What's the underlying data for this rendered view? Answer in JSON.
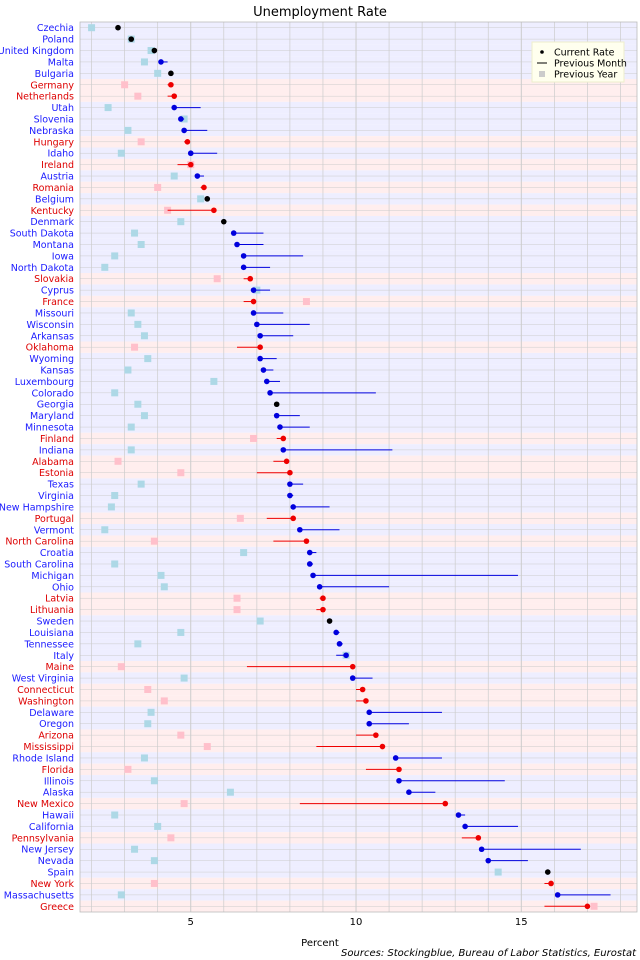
{
  "chart_data": {
    "type": "scatter",
    "title": "Unemployment Rate",
    "xlabel": "Percent",
    "ylabel": "",
    "xlim": [
      1.65,
      18.5
    ],
    "xticks": [
      5,
      10,
      15
    ],
    "grid": true,
    "legend": {
      "placement": "top-right",
      "items": [
        {
          "label": "Current Rate",
          "marker": "dot"
        },
        {
          "label": "Previous Month",
          "marker": "line"
        },
        {
          "label": "Previous Year",
          "marker": "square"
        }
      ]
    },
    "source": "Sources: Stockingblue, Bureau of Labor Statistics, Eurostat",
    "colors": {
      "country_label": "#1a1aff",
      "state_label": "#dd0000",
      "country_row_bg": "#eeeeff",
      "state_row_bg": "#ffeeee",
      "gridline": "#cccccc",
      "current_increase": "#000000",
      "current_decrease_country": "#0000dd",
      "current_decrease_state": "#ee0000",
      "prev_year_country": "#add8e6",
      "prev_year_state": "#ffc0cb"
    },
    "rows": [
      {
        "name": "Czechia",
        "kind": "country",
        "current": 2.8,
        "prev_month": 2.8,
        "prev_year": 2.0
      },
      {
        "name": "Poland",
        "kind": "country",
        "current": 3.2,
        "prev_month": 3.2,
        "prev_year": 3.2
      },
      {
        "name": "United Kingdom",
        "kind": "country",
        "current": 3.9,
        "prev_month": 3.9,
        "prev_year": 3.8
      },
      {
        "name": "Malta",
        "kind": "country",
        "current": 4.1,
        "prev_month": 4.3,
        "prev_year": 3.6
      },
      {
        "name": "Bulgaria",
        "kind": "country",
        "current": 4.4,
        "prev_month": 4.4,
        "prev_year": 4.0
      },
      {
        "name": "Germany",
        "kind": "state",
        "current": 4.4,
        "prev_month": 4.3,
        "prev_year": 3.0
      },
      {
        "name": "Netherlands",
        "kind": "state",
        "current": 4.5,
        "prev_month": 4.3,
        "prev_year": 3.4
      },
      {
        "name": "Utah",
        "kind": "country",
        "current": 4.5,
        "prev_month": 5.3,
        "prev_year": 2.5
      },
      {
        "name": "Slovenia",
        "kind": "country",
        "current": 4.7,
        "prev_month": 4.8,
        "prev_year": 4.8
      },
      {
        "name": "Nebraska",
        "kind": "country",
        "current": 4.8,
        "prev_month": 5.5,
        "prev_year": 3.1
      },
      {
        "name": "Hungary",
        "kind": "state",
        "current": 4.9,
        "prev_month": 4.8,
        "prev_year": 3.5
      },
      {
        "name": "Idaho",
        "kind": "country",
        "current": 5.0,
        "prev_month": 5.8,
        "prev_year": 2.9
      },
      {
        "name": "Ireland",
        "kind": "state",
        "current": 5.0,
        "prev_month": 4.6,
        "prev_year": 5.0
      },
      {
        "name": "Austria",
        "kind": "country",
        "current": 5.2,
        "prev_month": 5.4,
        "prev_year": 4.5
      },
      {
        "name": "Romania",
        "kind": "state",
        "current": 5.4,
        "prev_month": 5.3,
        "prev_year": 4.0
      },
      {
        "name": "Belgium",
        "kind": "country",
        "current": 5.5,
        "prev_month": 5.5,
        "prev_year": 5.3
      },
      {
        "name": "Kentucky",
        "kind": "state",
        "current": 5.7,
        "prev_month": 4.3,
        "prev_year": 4.3
      },
      {
        "name": "Denmark",
        "kind": "country",
        "current": 6.0,
        "prev_month": 6.0,
        "prev_year": 4.7
      },
      {
        "name": "South Dakota",
        "kind": "country",
        "current": 6.3,
        "prev_month": 7.2,
        "prev_year": 3.3
      },
      {
        "name": "Montana",
        "kind": "country",
        "current": 6.4,
        "prev_month": 7.2,
        "prev_year": 3.5
      },
      {
        "name": "Iowa",
        "kind": "country",
        "current": 6.6,
        "prev_month": 8.4,
        "prev_year": 2.7
      },
      {
        "name": "North Dakota",
        "kind": "country",
        "current": 6.6,
        "prev_month": 7.4,
        "prev_year": 2.4
      },
      {
        "name": "Slovakia",
        "kind": "state",
        "current": 6.8,
        "prev_month": 6.6,
        "prev_year": 5.8
      },
      {
        "name": "Cyprus",
        "kind": "country",
        "current": 6.9,
        "prev_month": 7.4,
        "prev_year": 7.0
      },
      {
        "name": "France",
        "kind": "state",
        "current": 6.9,
        "prev_month": 6.6,
        "prev_year": 8.5
      },
      {
        "name": "Missouri",
        "kind": "country",
        "current": 6.9,
        "prev_month": 7.8,
        "prev_year": 3.2
      },
      {
        "name": "Wisconsin",
        "kind": "country",
        "current": 7.0,
        "prev_month": 8.6,
        "prev_year": 3.4
      },
      {
        "name": "Arkansas",
        "kind": "country",
        "current": 7.1,
        "prev_month": 8.1,
        "prev_year": 3.6
      },
      {
        "name": "Oklahoma",
        "kind": "state",
        "current": 7.1,
        "prev_month": 6.4,
        "prev_year": 3.3
      },
      {
        "name": "Wyoming",
        "kind": "country",
        "current": 7.1,
        "prev_month": 7.6,
        "prev_year": 3.7
      },
      {
        "name": "Kansas",
        "kind": "country",
        "current": 7.2,
        "prev_month": 7.5,
        "prev_year": 3.1
      },
      {
        "name": "Luxembourg",
        "kind": "country",
        "current": 7.3,
        "prev_month": 7.7,
        "prev_year": 5.7
      },
      {
        "name": "Colorado",
        "kind": "country",
        "current": 7.4,
        "prev_month": 10.6,
        "prev_year": 2.7
      },
      {
        "name": "Georgia",
        "kind": "country",
        "current": 7.6,
        "prev_month": 7.6,
        "prev_year": 3.4
      },
      {
        "name": "Maryland",
        "kind": "country",
        "current": 7.6,
        "prev_month": 8.3,
        "prev_year": 3.6
      },
      {
        "name": "Minnesota",
        "kind": "country",
        "current": 7.7,
        "prev_month": 8.6,
        "prev_year": 3.2
      },
      {
        "name": "Finland",
        "kind": "state",
        "current": 7.8,
        "prev_month": 7.6,
        "prev_year": 6.9
      },
      {
        "name": "Indiana",
        "kind": "country",
        "current": 7.8,
        "prev_month": 11.1,
        "prev_year": 3.2
      },
      {
        "name": "Alabama",
        "kind": "state",
        "current": 7.9,
        "prev_month": 7.5,
        "prev_year": 2.8
      },
      {
        "name": "Estonia",
        "kind": "state",
        "current": 8.0,
        "prev_month": 7.0,
        "prev_year": 4.7
      },
      {
        "name": "Texas",
        "kind": "country",
        "current": 8.0,
        "prev_month": 8.4,
        "prev_year": 3.5
      },
      {
        "name": "Virginia",
        "kind": "country",
        "current": 8.0,
        "prev_month": 8.1,
        "prev_year": 2.7
      },
      {
        "name": "New Hampshire",
        "kind": "country",
        "current": 8.1,
        "prev_month": 9.2,
        "prev_year": 2.6
      },
      {
        "name": "Portugal",
        "kind": "state",
        "current": 8.1,
        "prev_month": 7.3,
        "prev_year": 6.5
      },
      {
        "name": "Vermont",
        "kind": "country",
        "current": 8.3,
        "prev_month": 9.5,
        "prev_year": 2.4
      },
      {
        "name": "North Carolina",
        "kind": "state",
        "current": 8.5,
        "prev_month": 7.5,
        "prev_year": 3.9
      },
      {
        "name": "Croatia",
        "kind": "country",
        "current": 8.6,
        "prev_month": 8.8,
        "prev_year": 6.6
      },
      {
        "name": "South Carolina",
        "kind": "country",
        "current": 8.6,
        "prev_month": 8.7,
        "prev_year": 2.7
      },
      {
        "name": "Michigan",
        "kind": "country",
        "current": 8.7,
        "prev_month": 14.9,
        "prev_year": 4.1
      },
      {
        "name": "Ohio",
        "kind": "country",
        "current": 8.9,
        "prev_month": 11.0,
        "prev_year": 4.2
      },
      {
        "name": "Latvia",
        "kind": "state",
        "current": 9.0,
        "prev_month": 8.9,
        "prev_year": 6.4
      },
      {
        "name": "Lithuania",
        "kind": "state",
        "current": 9.0,
        "prev_month": 8.8,
        "prev_year": 6.4
      },
      {
        "name": "Sweden",
        "kind": "country",
        "current": 9.2,
        "prev_month": 9.2,
        "prev_year": 7.1
      },
      {
        "name": "Louisiana",
        "kind": "country",
        "current": 9.4,
        "prev_month": 9.5,
        "prev_year": 4.7
      },
      {
        "name": "Tennessee",
        "kind": "country",
        "current": 9.5,
        "prev_month": 9.6,
        "prev_year": 3.4
      },
      {
        "name": "Italy",
        "kind": "country",
        "current": 9.7,
        "prev_month": 9.4,
        "prev_year": 9.7
      },
      {
        "name": "Maine",
        "kind": "state",
        "current": 9.9,
        "prev_month": 6.7,
        "prev_year": 2.9
      },
      {
        "name": "West Virginia",
        "kind": "country",
        "current": 9.9,
        "prev_month": 10.5,
        "prev_year": 4.8
      },
      {
        "name": "Connecticut",
        "kind": "state",
        "current": 10.2,
        "prev_month": 10.0,
        "prev_year": 3.7
      },
      {
        "name": "Washington",
        "kind": "state",
        "current": 10.3,
        "prev_month": 10.0,
        "prev_year": 4.2
      },
      {
        "name": "Delaware",
        "kind": "country",
        "current": 10.4,
        "prev_month": 12.6,
        "prev_year": 3.8
      },
      {
        "name": "Oregon",
        "kind": "country",
        "current": 10.4,
        "prev_month": 11.6,
        "prev_year": 3.7
      },
      {
        "name": "Arizona",
        "kind": "state",
        "current": 10.6,
        "prev_month": 10.0,
        "prev_year": 4.7
      },
      {
        "name": "Mississippi",
        "kind": "state",
        "current": 10.8,
        "prev_month": 8.8,
        "prev_year": 5.5
      },
      {
        "name": "Rhode Island",
        "kind": "country",
        "current": 11.2,
        "prev_month": 12.6,
        "prev_year": 3.6
      },
      {
        "name": "Florida",
        "kind": "state",
        "current": 11.3,
        "prev_month": 10.3,
        "prev_year": 3.1
      },
      {
        "name": "Illinois",
        "kind": "country",
        "current": 11.3,
        "prev_month": 14.5,
        "prev_year": 3.9
      },
      {
        "name": "Alaska",
        "kind": "country",
        "current": 11.6,
        "prev_month": 12.4,
        "prev_year": 6.2
      },
      {
        "name": "New Mexico",
        "kind": "state",
        "current": 12.7,
        "prev_month": 8.3,
        "prev_year": 4.8
      },
      {
        "name": "Hawaii",
        "kind": "country",
        "current": 13.1,
        "prev_month": 13.3,
        "prev_year": 2.7
      },
      {
        "name": "California",
        "kind": "country",
        "current": 13.3,
        "prev_month": 14.9,
        "prev_year": 4.0
      },
      {
        "name": "Pennsylvania",
        "kind": "state",
        "current": 13.7,
        "prev_month": 13.2,
        "prev_year": 4.4
      },
      {
        "name": "New Jersey",
        "kind": "country",
        "current": 13.8,
        "prev_month": 16.8,
        "prev_year": 3.3
      },
      {
        "name": "Nevada",
        "kind": "country",
        "current": 14.0,
        "prev_month": 15.2,
        "prev_year": 3.9
      },
      {
        "name": "Spain",
        "kind": "country",
        "current": 15.8,
        "prev_month": 15.8,
        "prev_year": 14.3
      },
      {
        "name": "New York",
        "kind": "state",
        "current": 15.9,
        "prev_month": 15.7,
        "prev_year": 3.9
      },
      {
        "name": "Massachusetts",
        "kind": "country",
        "current": 16.1,
        "prev_month": 17.7,
        "prev_year": 2.9
      },
      {
        "name": "Greece",
        "kind": "state",
        "current": 17.0,
        "prev_month": 15.7,
        "prev_year": 17.2
      }
    ]
  }
}
